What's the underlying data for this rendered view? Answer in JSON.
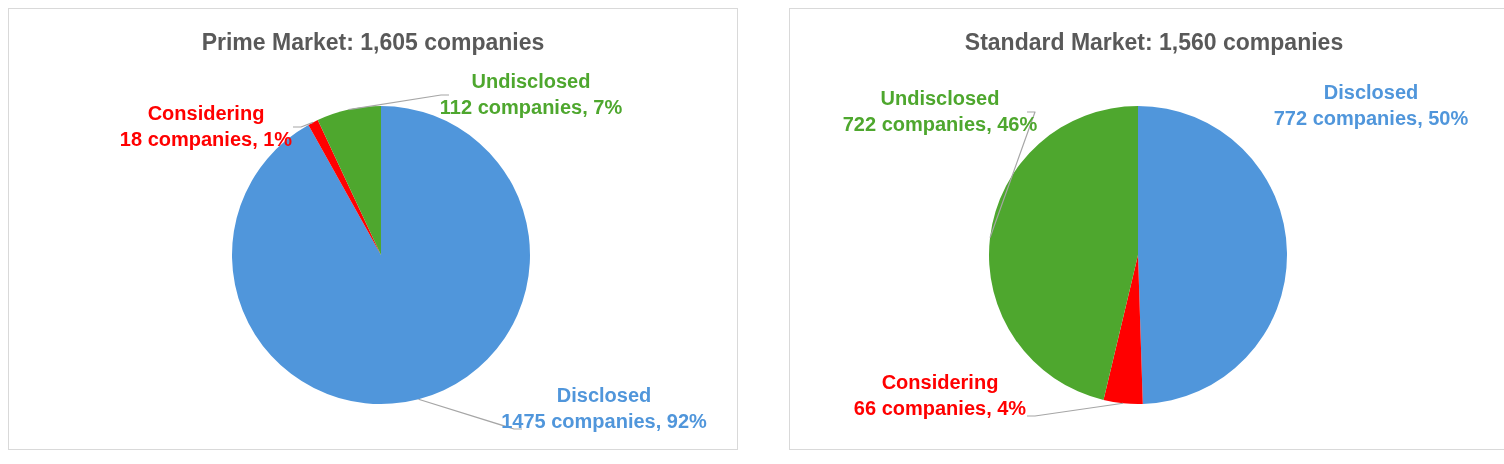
{
  "chart_data": [
    {
      "type": "pie",
      "title": "Prime Market: 1,605 companies",
      "categories": [
        "Disclosed",
        "Considering",
        "Undisclosed"
      ],
      "values": [
        1475,
        18,
        112
      ],
      "colors": [
        "#5096db",
        "#ff0000",
        "#4ea72e"
      ],
      "value_labels": [
        "1475 companies, 92%",
        "18 companies, 1%",
        "112 companies, 7%"
      ]
    },
    {
      "type": "pie",
      "title": "Standard Market: 1,560 companies",
      "categories": [
        "Disclosed",
        "Considering",
        "Undisclosed"
      ],
      "values": [
        772,
        66,
        722
      ],
      "colors": [
        "#5096db",
        "#ff0000",
        "#4ea72e"
      ],
      "value_labels": [
        "772 companies, 50%",
        "66 companies, 4%",
        "722 companies, 46%"
      ]
    }
  ]
}
